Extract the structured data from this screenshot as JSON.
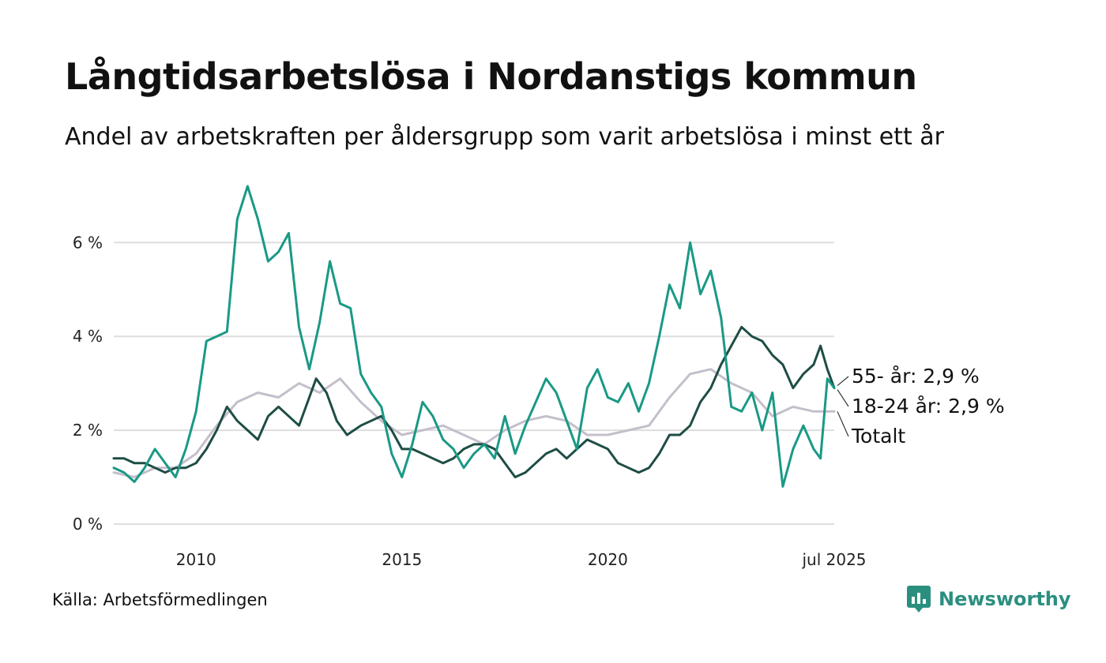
{
  "header": {
    "title": "Långtidsarbetslösa i Nordanstigs kommun",
    "subtitle": "Andel av arbetskraften per åldersgrupp som varit arbetslösa i minst ett år"
  },
  "footer": {
    "source": "Källa: Arbetsförmedlingen",
    "brand": "Newsworthy"
  },
  "colors": {
    "age55": "#1e4d45",
    "age18_24": "#1a9985",
    "total": "#c4bfcb",
    "grid": "#dddddd",
    "brand": "#2b8f80"
  },
  "chart_data": {
    "type": "line",
    "title": "Långtidsarbetslösa i Nordanstigs kommun",
    "subtitle": "Andel av arbetskraften per åldersgrupp som varit arbetslösa i minst ett år",
    "xlabel": "",
    "ylabel": "",
    "x_range": [
      "2008-01",
      "2025-07"
    ],
    "ylim": [
      0,
      7.3
    ],
    "y_ticks": [
      0,
      2,
      4,
      6
    ],
    "y_tick_labels": [
      "0 %",
      "2 %",
      "4 %",
      "6 %"
    ],
    "x_ticks": [
      "2010-01",
      "2015-01",
      "2020-01",
      "2025-07"
    ],
    "x_tick_labels": [
      "2010",
      "2015",
      "2020",
      "jul 2025"
    ],
    "grid": true,
    "legend": "end-labels",
    "end_labels": [
      {
        "series": "55-",
        "text": "55- år: 2,9 %"
      },
      {
        "series": "18-24",
        "text": "18-24 år: 2,9 %"
      },
      {
        "series": "total",
        "text": "Totalt"
      }
    ],
    "series": [
      {
        "key": "55-",
        "color": "#1e4d45",
        "points": [
          [
            "2008-01",
            1.4
          ],
          [
            "2008-04",
            1.4
          ],
          [
            "2008-07",
            1.3
          ],
          [
            "2008-10",
            1.3
          ],
          [
            "2009-01",
            1.2
          ],
          [
            "2009-04",
            1.1
          ],
          [
            "2009-07",
            1.2
          ],
          [
            "2009-10",
            1.2
          ],
          [
            "2010-01",
            1.3
          ],
          [
            "2010-04",
            1.6
          ],
          [
            "2010-07",
            2.0
          ],
          [
            "2010-10",
            2.5
          ],
          [
            "2011-01",
            2.2
          ],
          [
            "2011-04",
            2.0
          ],
          [
            "2011-07",
            1.8
          ],
          [
            "2011-10",
            2.3
          ],
          [
            "2012-01",
            2.5
          ],
          [
            "2012-04",
            2.3
          ],
          [
            "2012-07",
            2.1
          ],
          [
            "2012-10",
            2.7
          ],
          [
            "2012-12",
            3.1
          ],
          [
            "2013-03",
            2.8
          ],
          [
            "2013-06",
            2.2
          ],
          [
            "2013-09",
            1.9
          ],
          [
            "2014-01",
            2.1
          ],
          [
            "2014-04",
            2.2
          ],
          [
            "2014-07",
            2.3
          ],
          [
            "2014-10",
            2.0
          ],
          [
            "2015-01",
            1.6
          ],
          [
            "2015-04",
            1.6
          ],
          [
            "2015-07",
            1.5
          ],
          [
            "2015-10",
            1.4
          ],
          [
            "2016-01",
            1.3
          ],
          [
            "2016-04",
            1.4
          ],
          [
            "2016-07",
            1.6
          ],
          [
            "2016-10",
            1.7
          ],
          [
            "2017-01",
            1.7
          ],
          [
            "2017-04",
            1.6
          ],
          [
            "2017-07",
            1.3
          ],
          [
            "2017-10",
            1.0
          ],
          [
            "2018-01",
            1.1
          ],
          [
            "2018-04",
            1.3
          ],
          [
            "2018-07",
            1.5
          ],
          [
            "2018-10",
            1.6
          ],
          [
            "2019-01",
            1.4
          ],
          [
            "2019-04",
            1.6
          ],
          [
            "2019-07",
            1.8
          ],
          [
            "2019-10",
            1.7
          ],
          [
            "2020-01",
            1.6
          ],
          [
            "2020-04",
            1.3
          ],
          [
            "2020-07",
            1.2
          ],
          [
            "2020-10",
            1.1
          ],
          [
            "2021-01",
            1.2
          ],
          [
            "2021-04",
            1.5
          ],
          [
            "2021-07",
            1.9
          ],
          [
            "2021-10",
            1.9
          ],
          [
            "2022-01",
            2.1
          ],
          [
            "2022-04",
            2.6
          ],
          [
            "2022-07",
            2.9
          ],
          [
            "2022-10",
            3.4
          ],
          [
            "2023-01",
            3.8
          ],
          [
            "2023-04",
            4.2
          ],
          [
            "2023-07",
            4.0
          ],
          [
            "2023-10",
            3.9
          ],
          [
            "2024-01",
            3.6
          ],
          [
            "2024-04",
            3.4
          ],
          [
            "2024-07",
            2.9
          ],
          [
            "2024-10",
            3.2
          ],
          [
            "2025-01",
            3.4
          ],
          [
            "2025-03",
            3.8
          ],
          [
            "2025-05",
            3.3
          ],
          [
            "2025-07",
            2.9
          ]
        ]
      },
      {
        "key": "18-24",
        "color": "#1a9985",
        "points": [
          [
            "2008-01",
            1.2
          ],
          [
            "2008-04",
            1.1
          ],
          [
            "2008-07",
            0.9
          ],
          [
            "2008-10",
            1.2
          ],
          [
            "2009-01",
            1.6
          ],
          [
            "2009-04",
            1.3
          ],
          [
            "2009-07",
            1.0
          ],
          [
            "2009-10",
            1.6
          ],
          [
            "2010-01",
            2.4
          ],
          [
            "2010-04",
            3.9
          ],
          [
            "2010-07",
            4.0
          ],
          [
            "2010-10",
            4.1
          ],
          [
            "2011-01",
            6.5
          ],
          [
            "2011-04",
            7.2
          ],
          [
            "2011-07",
            6.5
          ],
          [
            "2011-10",
            5.6
          ],
          [
            "2012-01",
            5.8
          ],
          [
            "2012-04",
            6.2
          ],
          [
            "2012-07",
            4.2
          ],
          [
            "2012-10",
            3.3
          ],
          [
            "2013-01",
            4.3
          ],
          [
            "2013-04",
            5.6
          ],
          [
            "2013-07",
            4.7
          ],
          [
            "2013-10",
            4.6
          ],
          [
            "2014-01",
            3.2
          ],
          [
            "2014-04",
            2.8
          ],
          [
            "2014-07",
            2.5
          ],
          [
            "2014-10",
            1.5
          ],
          [
            "2015-01",
            1.0
          ],
          [
            "2015-04",
            1.7
          ],
          [
            "2015-07",
            2.6
          ],
          [
            "2015-10",
            2.3
          ],
          [
            "2016-01",
            1.8
          ],
          [
            "2016-04",
            1.6
          ],
          [
            "2016-07",
            1.2
          ],
          [
            "2016-10",
            1.5
          ],
          [
            "2017-01",
            1.7
          ],
          [
            "2017-04",
            1.4
          ],
          [
            "2017-07",
            2.3
          ],
          [
            "2017-10",
            1.5
          ],
          [
            "2018-01",
            2.1
          ],
          [
            "2018-04",
            2.6
          ],
          [
            "2018-07",
            3.1
          ],
          [
            "2018-10",
            2.8
          ],
          [
            "2019-01",
            2.2
          ],
          [
            "2019-04",
            1.6
          ],
          [
            "2019-07",
            2.9
          ],
          [
            "2019-10",
            3.3
          ],
          [
            "2020-01",
            2.7
          ],
          [
            "2020-04",
            2.6
          ],
          [
            "2020-07",
            3.0
          ],
          [
            "2020-10",
            2.4
          ],
          [
            "2021-01",
            3.0
          ],
          [
            "2021-04",
            4.0
          ],
          [
            "2021-07",
            5.1
          ],
          [
            "2021-10",
            4.6
          ],
          [
            "2022-01",
            6.0
          ],
          [
            "2022-04",
            4.9
          ],
          [
            "2022-07",
            5.4
          ],
          [
            "2022-10",
            4.4
          ],
          [
            "2023-01",
            2.5
          ],
          [
            "2023-04",
            2.4
          ],
          [
            "2023-07",
            2.8
          ],
          [
            "2023-10",
            2.0
          ],
          [
            "2024-01",
            2.8
          ],
          [
            "2024-04",
            0.8
          ],
          [
            "2024-07",
            1.6
          ],
          [
            "2024-10",
            2.1
          ],
          [
            "2025-01",
            1.6
          ],
          [
            "2025-03",
            1.4
          ],
          [
            "2025-05",
            3.1
          ],
          [
            "2025-07",
            2.9
          ]
        ]
      },
      {
        "key": "total",
        "color": "#c4bfcb",
        "points": [
          [
            "2008-01",
            1.1
          ],
          [
            "2008-07",
            1.0
          ],
          [
            "2009-01",
            1.2
          ],
          [
            "2009-07",
            1.2
          ],
          [
            "2010-01",
            1.5
          ],
          [
            "2010-07",
            2.1
          ],
          [
            "2011-01",
            2.6
          ],
          [
            "2011-07",
            2.8
          ],
          [
            "2012-01",
            2.7
          ],
          [
            "2012-07",
            3.0
          ],
          [
            "2013-01",
            2.8
          ],
          [
            "2013-07",
            3.1
          ],
          [
            "2014-01",
            2.6
          ],
          [
            "2014-07",
            2.2
          ],
          [
            "2015-01",
            1.9
          ],
          [
            "2015-07",
            2.0
          ],
          [
            "2016-01",
            2.1
          ],
          [
            "2016-07",
            1.9
          ],
          [
            "2017-01",
            1.7
          ],
          [
            "2017-07",
            2.0
          ],
          [
            "2018-01",
            2.2
          ],
          [
            "2018-07",
            2.3
          ],
          [
            "2019-01",
            2.2
          ],
          [
            "2019-07",
            1.9
          ],
          [
            "2020-01",
            1.9
          ],
          [
            "2020-07",
            2.0
          ],
          [
            "2021-01",
            2.1
          ],
          [
            "2021-07",
            2.7
          ],
          [
            "2022-01",
            3.2
          ],
          [
            "2022-07",
            3.3
          ],
          [
            "2023-01",
            3.0
          ],
          [
            "2023-07",
            2.8
          ],
          [
            "2024-01",
            2.3
          ],
          [
            "2024-07",
            2.5
          ],
          [
            "2025-01",
            2.4
          ],
          [
            "2025-07",
            2.4
          ]
        ]
      }
    ]
  }
}
